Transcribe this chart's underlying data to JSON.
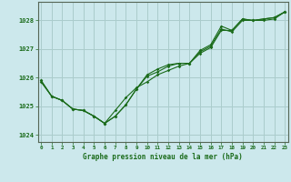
{
  "xlabel": "Graphe pression niveau de la mer (hPa)",
  "background_color": "#cce8ec",
  "grid_color": "#aacccc",
  "line_color": "#1a6b1a",
  "text_color": "#1a6b1a",
  "hours": [
    0,
    1,
    2,
    3,
    4,
    5,
    6,
    7,
    8,
    9,
    10,
    11,
    12,
    13,
    14,
    15,
    16,
    17,
    18,
    19,
    20,
    21,
    22,
    23
  ],
  "series1": [
    1025.9,
    1025.35,
    1025.2,
    1024.9,
    1024.85,
    1024.65,
    1024.4,
    1024.85,
    1025.3,
    1025.65,
    1025.85,
    1026.1,
    1026.25,
    1026.4,
    1026.5,
    1026.85,
    1027.05,
    1027.65,
    1027.65,
    1028.05,
    1028.0,
    1028.05,
    1028.1,
    1028.3
  ],
  "series2": [
    1025.9,
    1025.35,
    1025.2,
    1024.9,
    1024.85,
    1024.65,
    1024.4,
    1024.65,
    1025.05,
    1025.6,
    1026.1,
    1026.3,
    1026.45,
    1026.5,
    1026.5,
    1026.95,
    1027.15,
    1027.8,
    1027.65,
    1028.05,
    1028.0,
    1028.05,
    1028.1,
    1028.3
  ],
  "series3": [
    1025.85,
    1025.35,
    1025.2,
    1024.9,
    1024.85,
    1024.65,
    1024.4,
    1024.65,
    1025.05,
    1025.6,
    1026.05,
    1026.2,
    1026.4,
    1026.5,
    1026.5,
    1026.9,
    1027.1,
    1027.7,
    1027.6,
    1028.0,
    1028.0,
    1028.0,
    1028.05,
    1028.3
  ],
  "ylim": [
    1023.75,
    1028.65
  ],
  "yticks": [
    1024,
    1025,
    1026,
    1027,
    1028
  ],
  "xlim": [
    -0.3,
    23.3
  ]
}
